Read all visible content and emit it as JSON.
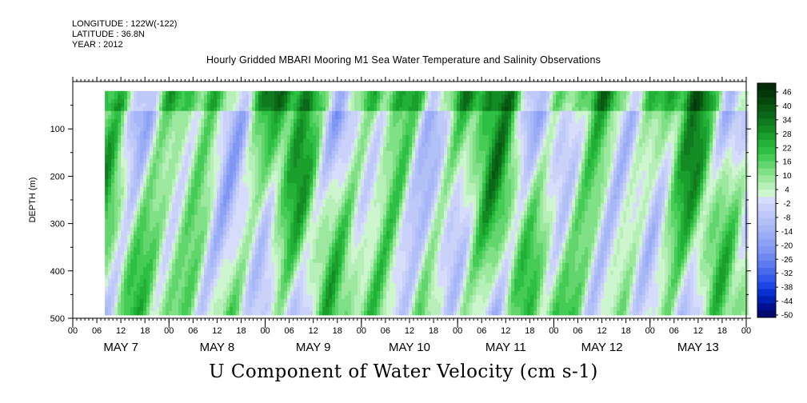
{
  "header": {
    "longitude": "LONGITUDE : 122W(-122)",
    "latitude": "LATITUDE : 36.8N",
    "year": "YEAR : 2012",
    "title": "Hourly Gridded MBARI Mooring M1 Sea Water Temperature and Salinity Observations"
  },
  "main_title": "U Component of Water Velocity (cm s-1)",
  "chart_data": {
    "type": "heatmap",
    "title": "Hourly Gridded MBARI Mooring M1 Sea Water Temperature and Salinity Observations",
    "subtitle": "U Component of Water Velocity (cm s-1)",
    "xlabel": "",
    "ylabel": "DEPTH (m)",
    "y_range": [
      0,
      500
    ],
    "y_ticks": [
      100,
      200,
      300,
      400,
      500
    ],
    "hour_ticks": [
      "00",
      "06",
      "12",
      "18",
      "00",
      "06",
      "12",
      "18",
      "00",
      "06",
      "12",
      "18",
      "00",
      "06",
      "12",
      "18",
      "00",
      "06",
      "12",
      "18",
      "00",
      "06",
      "12",
      "18",
      "00",
      "06",
      "12",
      "18",
      "00"
    ],
    "day_labels": [
      "MAY 7",
      "MAY 8",
      "MAY 9",
      "MAY 10",
      "MAY 11",
      "MAY 12",
      "MAY 13"
    ],
    "data_extent": {
      "hours_start": 8,
      "hours_end": 168,
      "depth_top": 20,
      "depth_bottom": 485
    },
    "colorbar": {
      "labels": [
        "46",
        "40",
        "34",
        "28",
        "22",
        "16",
        "10",
        "4",
        "-2",
        "-8",
        "-14",
        "-20",
        "-26",
        "-32",
        "-38",
        "-44",
        "-50"
      ],
      "levels": [
        -50,
        -47,
        -44,
        -41,
        -38,
        -35,
        -32,
        -29,
        -26,
        -23,
        -20,
        -17,
        -14,
        -11,
        -8,
        -5,
        -2,
        1,
        4,
        7,
        10,
        13,
        16,
        19,
        22,
        25,
        28,
        31,
        34,
        37,
        40,
        43,
        46,
        49
      ],
      "colors": [
        "#000a6e",
        "#001090",
        "#0020b4",
        "#0a30d2",
        "#1e46e6",
        "#3358ec",
        "#4a6aee",
        "#5e7af0",
        "#7088f2",
        "#8096f4",
        "#8ea2f5",
        "#9aacf6",
        "#a6b6f7",
        "#b2c0f8",
        "#bec9f9",
        "#cad2fa",
        "#d6dcfb",
        "#cef6ce",
        "#b6f0b8",
        "#9ce89f",
        "#80e086",
        "#62d66d",
        "#44cc55",
        "#2ec044",
        "#22b036",
        "#1a9e2c",
        "#148c24",
        "#0f7a1e",
        "#0b6818",
        "#085812",
        "#05480e",
        "#03380a",
        "#022a07"
      ]
    }
  }
}
